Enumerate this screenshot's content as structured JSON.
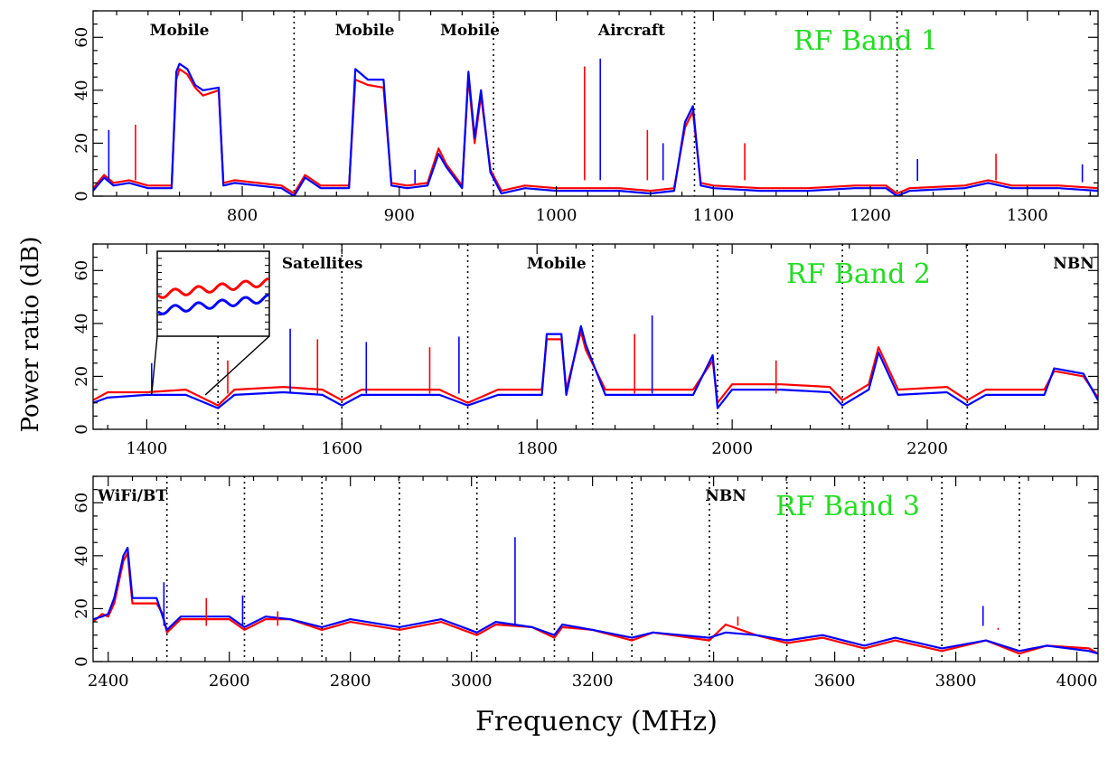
{
  "figure": {
    "ylabel": "Power ratio (dB)",
    "xlabel": "Frequency (MHz)",
    "series_colors": [
      "#ff0000",
      "#0000ff"
    ],
    "band_color": "#22dd22"
  },
  "chart_data": [
    {
      "type": "line",
      "band_label": "RF Band 1",
      "xlim": [
        705,
        1345
      ],
      "ylim": [
        0,
        70
      ],
      "xticks_major": [
        800,
        900,
        1000,
        1100,
        1200,
        1300
      ],
      "yticks_major": [
        0,
        20,
        40,
        60
      ],
      "vlines": [
        833,
        960,
        1088,
        1217
      ],
      "annotations": [
        {
          "text": "Mobile",
          "x": 760,
          "y": 64
        },
        {
          "text": "Mobile",
          "x": 878,
          "y": 64
        },
        {
          "text": "Mobile",
          "x": 945,
          "y": 64
        },
        {
          "text": "Aircraft",
          "x": 1048,
          "y": 64
        }
      ],
      "series": [
        {
          "x": [
            705,
            712,
            718,
            728,
            740,
            755,
            758,
            760,
            765,
            770,
            775,
            785,
            788,
            795,
            810,
            825,
            833,
            840,
            850,
            868,
            872,
            880,
            890,
            895,
            905,
            918,
            925,
            930,
            940,
            944,
            948,
            952,
            958,
            965,
            980,
            1000,
            1020,
            1040,
            1060,
            1075,
            1082,
            1087,
            1092,
            1100,
            1130,
            1160,
            1190,
            1210,
            1217,
            1225,
            1260,
            1275,
            1290,
            1320,
            1345
          ],
          "y": [
            3,
            8,
            5,
            6,
            4,
            4,
            44,
            48,
            46,
            41,
            38,
            40,
            5,
            6,
            5,
            4,
            1,
            8,
            4,
            4,
            44,
            42,
            41,
            5,
            4,
            5,
            18,
            12,
            4,
            45,
            20,
            38,
            10,
            2,
            4,
            3,
            3,
            3,
            2,
            3,
            26,
            32,
            5,
            4,
            3,
            3,
            4,
            4,
            1,
            3,
            4,
            6,
            4,
            4,
            3
          ]
        },
        {
          "x": [
            705,
            712,
            718,
            728,
            740,
            755,
            758,
            760,
            765,
            770,
            775,
            785,
            788,
            795,
            810,
            825,
            833,
            840,
            850,
            868,
            872,
            880,
            890,
            895,
            905,
            918,
            925,
            930,
            940,
            944,
            948,
            952,
            958,
            965,
            980,
            1000,
            1020,
            1040,
            1060,
            1075,
            1082,
            1087,
            1092,
            1100,
            1130,
            1160,
            1190,
            1210,
            1217,
            1225,
            1260,
            1275,
            1290,
            1320,
            1345
          ],
          "y": [
            2,
            7,
            4,
            5,
            3,
            3,
            47,
            50,
            48,
            42,
            40,
            41,
            4,
            5,
            4,
            3,
            0,
            7,
            3,
            3,
            48,
            44,
            44,
            4,
            3,
            4,
            16,
            11,
            3,
            47,
            22,
            40,
            9,
            1,
            3,
            2,
            2,
            2,
            1,
            2,
            28,
            34,
            4,
            3,
            2,
            2,
            3,
            3,
            0,
            2,
            3,
            5,
            3,
            3,
            2
          ]
        }
      ],
      "spikes": [
        {
          "x": 715,
          "y": 25
        },
        {
          "x": 732,
          "y": 27
        },
        {
          "x": 910,
          "y": 10
        },
        {
          "x": 1018,
          "y": 49
        },
        {
          "x": 1028,
          "y": 52
        },
        {
          "x": 1058,
          "y": 25
        },
        {
          "x": 1068,
          "y": 20
        },
        {
          "x": 1120,
          "y": 20
        },
        {
          "x": 1230,
          "y": 14
        },
        {
          "x": 1280,
          "y": 16
        },
        {
          "x": 1335,
          "y": 12
        }
      ]
    },
    {
      "type": "line",
      "band_label": "RF Band 2",
      "xlim": [
        1345,
        2375
      ],
      "ylim": [
        0,
        70
      ],
      "xticks_major": [
        1400,
        1600,
        1800,
        2000,
        2200
      ],
      "yticks_major": [
        0,
        20,
        40,
        60
      ],
      "vlines": [
        1473,
        1600,
        1729,
        1857,
        1985,
        2113,
        2241
      ],
      "annotations": [
        {
          "text": "Satellites",
          "x": 1580,
          "y": 64
        },
        {
          "text": "Mobile",
          "x": 1820,
          "y": 64
        },
        {
          "text": "NBN",
          "x": 2350,
          "y": 64
        }
      ],
      "series": [
        {
          "x": [
            1345,
            1360,
            1400,
            1440,
            1473,
            1490,
            1540,
            1580,
            1600,
            1620,
            1700,
            1729,
            1760,
            1805,
            1810,
            1825,
            1830,
            1845,
            1850,
            1870,
            1920,
            1960,
            1980,
            1985,
            2000,
            2050,
            2100,
            2113,
            2140,
            2150,
            2170,
            2220,
            2241,
            2260,
            2320,
            2330,
            2360,
            2375
          ],
          "y": [
            11,
            14,
            14,
            15,
            9,
            15,
            16,
            15,
            11,
            15,
            15,
            10,
            15,
            15,
            34,
            34,
            15,
            37,
            30,
            15,
            15,
            15,
            26,
            10,
            17,
            17,
            16,
            11,
            17,
            31,
            15,
            16,
            11,
            15,
            15,
            22,
            20,
            12
          ]
        },
        {
          "x": [
            1345,
            1360,
            1400,
            1440,
            1473,
            1490,
            1540,
            1580,
            1600,
            1620,
            1700,
            1729,
            1760,
            1805,
            1810,
            1825,
            1830,
            1845,
            1850,
            1870,
            1920,
            1960,
            1980,
            1985,
            2000,
            2050,
            2100,
            2113,
            2140,
            2150,
            2170,
            2220,
            2241,
            2260,
            2320,
            2330,
            2360,
            2375
          ],
          "y": [
            10,
            12,
            13,
            13,
            8,
            13,
            14,
            13,
            9,
            13,
            13,
            9,
            13,
            13,
            36,
            36,
            13,
            39,
            32,
            13,
            13,
            13,
            28,
            8,
            15,
            15,
            14,
            9,
            15,
            29,
            13,
            14,
            9,
            13,
            13,
            23,
            21,
            11
          ]
        }
      ],
      "spikes": [
        {
          "x": 1405,
          "y": 25
        },
        {
          "x": 1483,
          "y": 26
        },
        {
          "x": 1547,
          "y": 38
        },
        {
          "x": 1575,
          "y": 34
        },
        {
          "x": 1625,
          "y": 33
        },
        {
          "x": 1690,
          "y": 31
        },
        {
          "x": 1720,
          "y": 35
        },
        {
          "x": 1900,
          "y": 36
        },
        {
          "x": 1918,
          "y": 43
        },
        {
          "x": 2045,
          "y": 26
        }
      ]
    },
    {
      "type": "line",
      "band_label": "RF Band 3",
      "xlim": [
        2375,
        4035
      ],
      "ylim": [
        0,
        70
      ],
      "xticks_major": [
        2400,
        2600,
        2800,
        3000,
        3200,
        3400,
        3600,
        3800,
        4000
      ],
      "yticks_major": [
        0,
        20,
        40,
        60
      ],
      "vlines": [
        2497,
        2625,
        2753,
        2881,
        3009,
        3137,
        3265,
        3393,
        3521,
        3649,
        3777,
        3905
      ],
      "annotations": [
        {
          "text": "WiFi/BT",
          "x": 2440,
          "y": 64
        },
        {
          "text": "NBN",
          "x": 3420,
          "y": 64
        }
      ],
      "series": [
        {
          "x": [
            2375,
            2390,
            2400,
            2410,
            2425,
            2432,
            2440,
            2480,
            2490,
            2497,
            2520,
            2600,
            2625,
            2660,
            2700,
            2753,
            2800,
            2881,
            2950,
            3009,
            3040,
            3100,
            3137,
            3150,
            3200,
            3265,
            3300,
            3393,
            3420,
            3470,
            3521,
            3580,
            3649,
            3700,
            3777,
            3850,
            3905,
            3950,
            4020,
            4035
          ],
          "y": [
            15,
            18,
            17,
            22,
            38,
            41,
            22,
            22,
            18,
            11,
            16,
            16,
            12,
            16,
            16,
            12,
            15,
            12,
            15,
            10,
            14,
            13,
            9,
            13,
            12,
            8,
            11,
            8,
            14,
            10,
            7,
            9,
            5,
            8,
            4,
            8,
            3,
            6,
            5,
            3
          ]
        },
        {
          "x": [
            2375,
            2390,
            2400,
            2410,
            2425,
            2432,
            2440,
            2480,
            2490,
            2497,
            2520,
            2600,
            2625,
            2660,
            2700,
            2753,
            2800,
            2881,
            2950,
            3009,
            3040,
            3100,
            3137,
            3150,
            3200,
            3265,
            3300,
            3393,
            3420,
            3470,
            3521,
            3580,
            3649,
            3700,
            3777,
            3850,
            3905,
            3950,
            4020,
            4035
          ],
          "y": [
            16,
            17,
            18,
            24,
            40,
            43,
            24,
            24,
            17,
            12,
            17,
            17,
            13,
            17,
            16,
            13,
            16,
            13,
            16,
            11,
            15,
            13,
            10,
            14,
            12,
            9,
            11,
            9,
            11,
            10,
            8,
            10,
            6,
            9,
            5,
            8,
            4,
            6,
            4,
            3
          ]
        }
      ],
      "spikes": [
        {
          "x": 2492,
          "y": 30
        },
        {
          "x": 2562,
          "y": 24
        },
        {
          "x": 2622,
          "y": 25
        },
        {
          "x": 2680,
          "y": 19
        },
        {
          "x": 3072,
          "y": 47
        },
        {
          "x": 3440,
          "y": 17
        },
        {
          "x": 3845,
          "y": 21
        },
        {
          "x": 3870,
          "y": 12
        }
      ]
    }
  ]
}
